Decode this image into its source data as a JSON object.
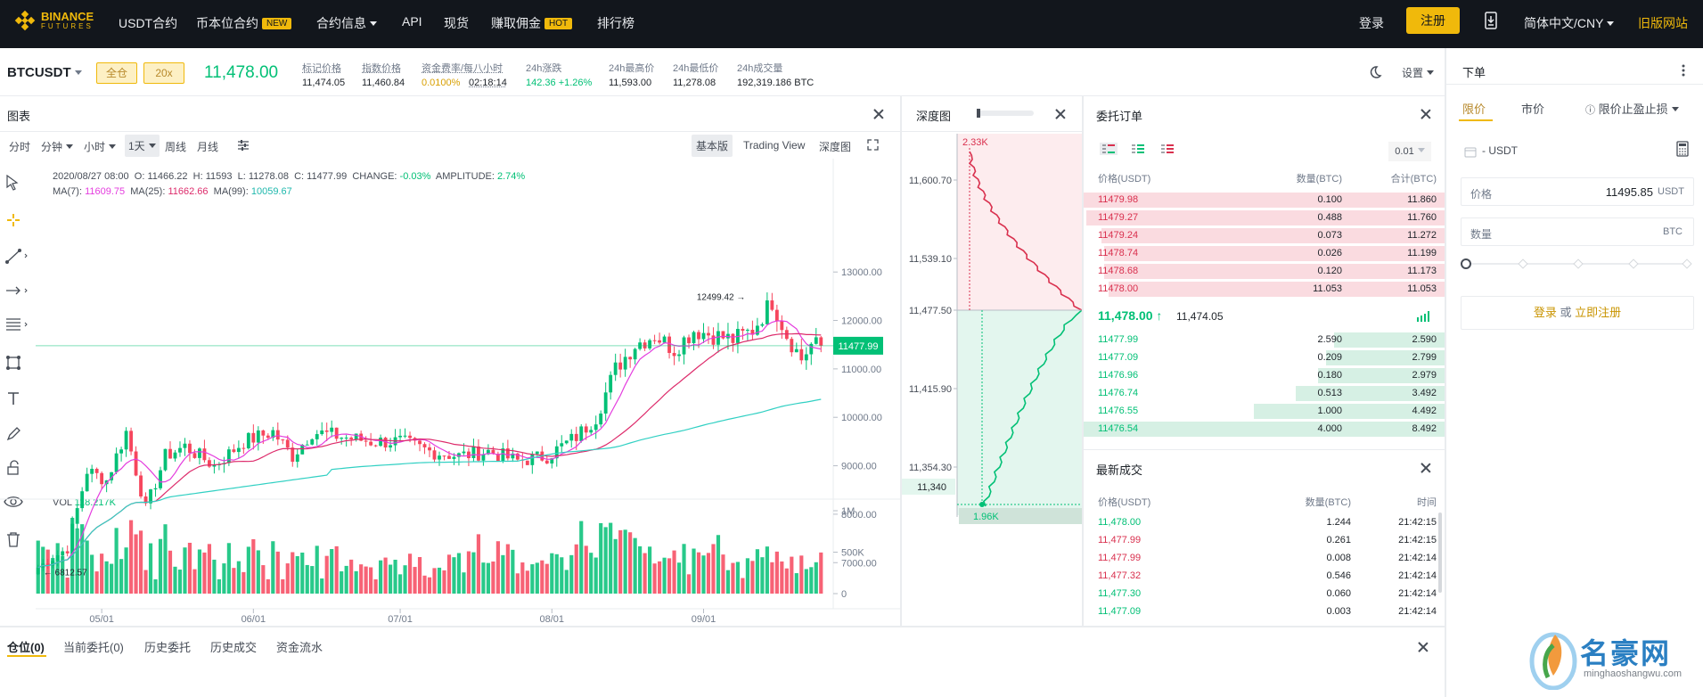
{
  "nav": {
    "logo_word": "BINANCE",
    "logo_sub": "FUTURES",
    "items": [
      {
        "label": "USDT合约"
      },
      {
        "label": "币本位合约",
        "tag": "NEW"
      },
      {
        "label": "合约信息"
      },
      {
        "label": "API"
      },
      {
        "label": "现货"
      },
      {
        "label": "赚取佣金",
        "tag": "HOT"
      },
      {
        "label": "排行榜"
      }
    ],
    "login": "登录",
    "register": "注册",
    "language": "简体中文/CNY",
    "old_site": "旧版网站"
  },
  "ticker": {
    "symbol": "BTCUSDT",
    "margin_mode": "全仓",
    "leverage": "20x",
    "last_price": "11,478.00",
    "stats": [
      {
        "label": "标记价格",
        "value": "11,474.05"
      },
      {
        "label": "指数价格",
        "value": "11,460.84"
      },
      {
        "label": "资金费率/每八小时",
        "value": "0.0100%",
        "value2": "02:18:14"
      },
      {
        "label": "24h涨跌",
        "value": "142.36 +1.26%"
      },
      {
        "label": "24h最高价",
        "value": "11,593.00"
      },
      {
        "label": "24h最低价",
        "value": "11,278.08"
      },
      {
        "label": "24h成交量",
        "value": "192,319.186 BTC"
      }
    ],
    "settings": "设置"
  },
  "chart_panel": {
    "title": "图表",
    "intervals": [
      "分时",
      "分钟",
      "小时",
      "1天",
      "周线",
      "月线"
    ],
    "views": [
      "基本版",
      "Trading View",
      "深度图"
    ],
    "ohlc_label": "2020/08/27 08:00",
    "ohlc": {
      "o": "11466.22",
      "h": "11593",
      "l": "11278.08",
      "c": "11477.99",
      "change": "-0.03%",
      "amplitude": "2.74%"
    },
    "ohlc_prefix": {
      "o": "O:",
      "h": "H:",
      "l": "L:",
      "c": "C:",
      "change": "CHANGE:",
      "amplitude": "AMPLITUDE:"
    },
    "ma": {
      "ma7_label": "MA(7):",
      "ma7": "11609.75",
      "ma25_label": "MA(25):",
      "ma25": "11662.66",
      "ma99_label": "MA(99):",
      "ma99": "10059.67"
    },
    "vol_label": "VOL",
    "vol_value": "118.217K",
    "current_price_tag": "11477.99",
    "high_marker": "12499.42",
    "low_marker": "6812.57",
    "colors": {
      "up": "#02c076",
      "down": "#f6465d",
      "ma7": "#e43cde",
      "ma25": "#dd2b6b",
      "ma99": "#31d0c3"
    }
  },
  "chart_data": {
    "type": "candlestick",
    "y_ticks": [
      "13000.00",
      "12000.00",
      "11000.00",
      "10000.00",
      "9000.00",
      "8000.00",
      "7000.00"
    ],
    "ylim": [
      6600,
      13500
    ],
    "vol_ticks": [
      "1M",
      "500K",
      "0"
    ],
    "x_ticks": [
      "05/01",
      "06/01",
      "07/01",
      "08/01",
      "09/01"
    ],
    "start_date": "2020-04-18",
    "trend": [
      [
        0,
        6900
      ],
      [
        6,
        7300
      ],
      [
        10,
        8900
      ],
      [
        14,
        8700
      ],
      [
        18,
        9700
      ],
      [
        22,
        8100
      ],
      [
        26,
        9200
      ],
      [
        30,
        9400
      ],
      [
        36,
        9000
      ],
      [
        42,
        9500
      ],
      [
        48,
        9700
      ],
      [
        52,
        9200
      ],
      [
        56,
        9700
      ],
      [
        62,
        9600
      ],
      [
        68,
        9500
      ],
      [
        74,
        9500
      ],
      [
        80,
        9300
      ],
      [
        86,
        9200
      ],
      [
        92,
        9300
      ],
      [
        98,
        9100
      ],
      [
        104,
        9200
      ],
      [
        110,
        9600
      ],
      [
        114,
        10000
      ],
      [
        118,
        11000
      ],
      [
        122,
        11500
      ],
      [
        126,
        11700
      ],
      [
        130,
        11400
      ],
      [
        134,
        11800
      ],
      [
        138,
        11700
      ],
      [
        142,
        11600
      ],
      [
        146,
        11800
      ],
      [
        150,
        12400
      ],
      [
        153,
        11700
      ],
      [
        156,
        11200
      ],
      [
        158,
        11500
      ],
      [
        160,
        11478
      ]
    ]
  },
  "depth_panel": {
    "title": "深度图",
    "y_ticks": [
      "11,600.70",
      "11,539.10",
      "11,477.50",
      "11,415.90",
      "11,354.30",
      "11,340"
    ],
    "top_label": "2.33K",
    "bottom_label": "1.96K"
  },
  "orderbook": {
    "title": "委托订单",
    "precision": "0.01",
    "headers": [
      "价格(USDT)",
      "数量(BTC)",
      "合计(BTC)"
    ],
    "asks": [
      [
        "11479.98",
        "0.100",
        "11.860"
      ],
      [
        "11479.27",
        "0.488",
        "11.760"
      ],
      [
        "11479.24",
        "0.073",
        "11.272"
      ],
      [
        "11478.74",
        "0.026",
        "11.199"
      ],
      [
        "11478.68",
        "0.120",
        "11.173"
      ],
      [
        "11478.00",
        "11.053",
        "11.053"
      ]
    ],
    "mid_price": "11,478.00",
    "mid_mark": "11,474.05",
    "bids": [
      [
        "11477.99",
        "2.590",
        "2.590"
      ],
      [
        "11477.09",
        "0.209",
        "2.799"
      ],
      [
        "11476.96",
        "0.180",
        "2.979"
      ],
      [
        "11476.74",
        "0.513",
        "3.492"
      ],
      [
        "11476.55",
        "1.000",
        "4.492"
      ],
      [
        "11476.54",
        "4.000",
        "8.492"
      ]
    ]
  },
  "trades": {
    "title": "最新成交",
    "headers": [
      "价格(USDT)",
      "数量(BTC)",
      "时间"
    ],
    "rows": [
      [
        "11,478.00",
        "1.244",
        "21:42:15",
        "up"
      ],
      [
        "11,477.99",
        "0.261",
        "21:42:15",
        "down"
      ],
      [
        "11,477.99",
        "0.008",
        "21:42:14",
        "down"
      ],
      [
        "11,477.32",
        "0.546",
        "21:42:14",
        "down"
      ],
      [
        "11,477.30",
        "0.060",
        "21:42:14",
        "up"
      ],
      [
        "11,477.09",
        "0.003",
        "21:42:14",
        "up"
      ]
    ]
  },
  "order_form": {
    "title": "下单",
    "tabs": [
      "限价",
      "市价",
      "限价止盈止损"
    ],
    "balance": "- USDT",
    "price_label": "价格",
    "price_value": "11495.85",
    "price_unit": "USDT",
    "qty_label": "数量",
    "qty_unit": "BTC",
    "login": "登录",
    "or": "或",
    "register": "立即注册"
  },
  "bottom_tabs": [
    "仓位(0)",
    "当前委托(0)",
    "历史委托",
    "历史成交",
    "资金流水"
  ],
  "watermark": {
    "cn": "名豪网",
    "en": "minghaoshangwu.com"
  }
}
